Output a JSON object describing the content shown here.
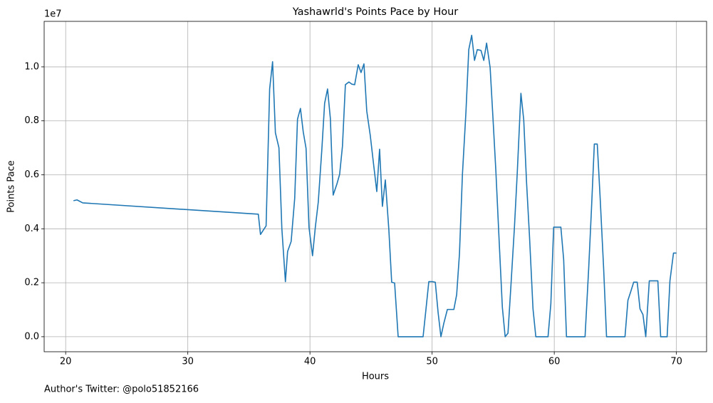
{
  "chart_data": {
    "type": "line",
    "title": "Yashawrld's Points Pace by Hour",
    "x_label": "Hours",
    "y_label": "Points Pace",
    "y_offset_label": "1e7",
    "footnote": "Author's Twitter: @polo51852166",
    "color": "#1f77b4",
    "grid": true,
    "xlim": [
      18.24,
      72.47
    ],
    "ylim": [
      -556500,
      11686500
    ],
    "xticks": [
      20,
      30,
      40,
      50,
      60,
      70
    ],
    "yticks": [
      {
        "value": 0,
        "label": "0.0"
      },
      {
        "value": 2000000,
        "label": "0.2"
      },
      {
        "value": 4000000,
        "label": "0.4"
      },
      {
        "value": 6000000,
        "label": "0.6"
      },
      {
        "value": 8000000,
        "label": "0.8"
      },
      {
        "value": 10000000,
        "label": "1.0"
      }
    ],
    "x": [
      20.64,
      20.93,
      21.4,
      35.77,
      35.95,
      36.41,
      36.7,
      36.94,
      37.17,
      37.46,
      37.7,
      37.99,
      38.17,
      38.46,
      38.75,
      38.98,
      39.22,
      39.45,
      39.68,
      39.92,
      40.21,
      40.44,
      40.68,
      40.97,
      41.2,
      41.44,
      41.67,
      41.9,
      42.2,
      42.43,
      42.66,
      42.9,
      43.19,
      43.42,
      43.66,
      43.95,
      44.18,
      44.42,
      44.65,
      44.94,
      45.18,
      45.47,
      45.7,
      45.93,
      46.17,
      46.46,
      46.69,
      46.93,
      47.22,
      49.26,
      49.5,
      49.73,
      50.02,
      50.26,
      50.49,
      50.72,
      50.96,
      51.25,
      51.48,
      51.78,
      52.01,
      52.24,
      52.48,
      52.77,
      53.0,
      53.24,
      53.47,
      53.7,
      54.0,
      54.23,
      54.46,
      54.75,
      54.99,
      55.22,
      55.51,
      55.75,
      55.98,
      56.21,
      56.45,
      56.74,
      56.97,
      57.27,
      57.5,
      57.73,
      57.97,
      58.26,
      58.49,
      59.49,
      59.72,
      59.95,
      60.25,
      60.54,
      60.77,
      61.0,
      62.52,
      62.82,
      63.05,
      63.28,
      63.52,
      63.75,
      64.04,
      64.28,
      65.79,
      66.03,
      66.26,
      66.5,
      66.79,
      67.02,
      67.26,
      67.49,
      67.78,
      68.01,
      68.25,
      68.48,
      68.71,
      69.24,
      69.47,
      69.76,
      70.0
    ],
    "values": [
      5040000,
      5070000,
      4960000,
      4540000,
      3790000,
      4110000,
      9180000,
      10190000,
      7560000,
      7000000,
      4000000,
      2040000,
      3160000,
      3530000,
      5120000,
      8060000,
      8460000,
      7590000,
      6980000,
      4060000,
      3000000,
      4060000,
      4990000,
      6920000,
      8650000,
      9180000,
      8090000,
      5250000,
      5650000,
      6020000,
      7060000,
      9340000,
      9440000,
      9360000,
      9340000,
      10080000,
      9790000,
      10110000,
      8360000,
      7450000,
      6500000,
      5380000,
      6950000,
      4830000,
      5810000,
      3950000,
      2020000,
      1990000,
      0,
      0,
      1030000,
      2040000,
      2040000,
      2020000,
      900000,
      0,
      500000,
      1010000,
      1010000,
      1010000,
      1560000,
      3080000,
      6000000,
      8330000,
      10640000,
      11170000,
      10240000,
      10640000,
      10610000,
      10240000,
      10880000,
      9970000,
      8040000,
      6130000,
      3340000,
      1090000,
      0,
      130000,
      1880000,
      4060000,
      6070000,
      9020000,
      8040000,
      5730000,
      3740000,
      1030000,
      0,
      0,
      1220000,
      4060000,
      4060000,
      4060000,
      2860000,
      0,
      0,
      2550000,
      4770000,
      7140000,
      7140000,
      5200000,
      2550000,
      0,
      0,
      1350000,
      1670000,
      2020000,
      2020000,
      1030000,
      820000,
      0,
      2070000,
      2070000,
      2070000,
      2070000,
      0,
      0,
      2070000,
      3100000,
      3100000
    ]
  }
}
